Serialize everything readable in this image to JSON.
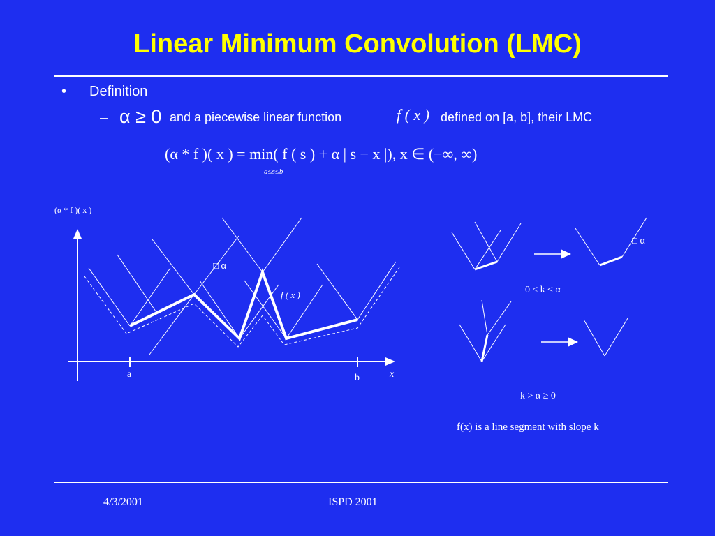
{
  "slide": {
    "title": "Linear Minimum Convolution (LMC)",
    "bullet1": {
      "marker": "•",
      "text": "Definition"
    },
    "bullet2": {
      "marker": "–",
      "alpha_condition": "α ≥ 0",
      "text_before": "and a piecewise linear function",
      "function": "f ( x )",
      "text_after": "defined on [a, b], their LMC"
    },
    "formula": "(α * f )( x ) = min( f ( s ) + α | s − x |), x ∈ (−∞, ∞)",
    "formula_subscript": "a≤s≤b"
  },
  "diagram": {
    "main_plot": {
      "y_axis_label": "(α * f )( x )",
      "x_axis_label": "x",
      "tick_a": "a",
      "tick_b": "b",
      "alpha_marker": "□ α",
      "function_label": "f ( x )"
    },
    "case1": {
      "alpha_marker": "□ α",
      "condition": "0 ≤ k ≤ α"
    },
    "case2": {
      "condition": "k > α ≥ 0"
    },
    "caption": "f(x) is a line segment with slope k"
  },
  "footer": {
    "date": "4/3/2001",
    "conference": "ISPD 2001"
  },
  "colors": {
    "background": "#1e2ef0",
    "title": "#ffff00",
    "lines": "#ffffff"
  }
}
